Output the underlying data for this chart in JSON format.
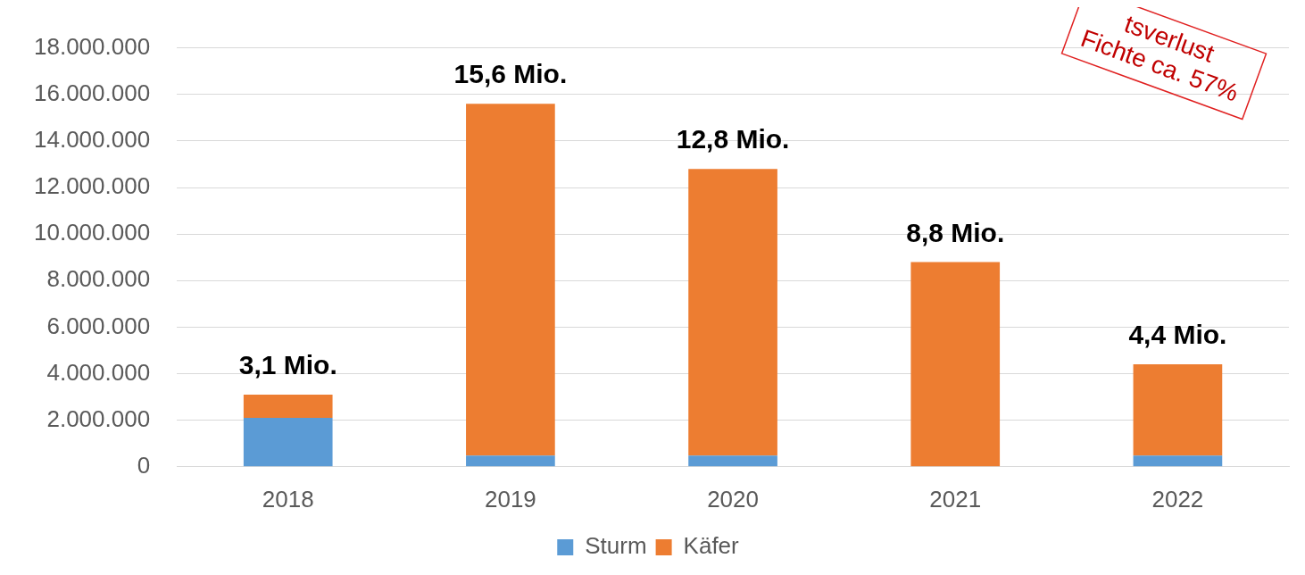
{
  "chart_data": {
    "type": "bar",
    "stacked": true,
    "categories": [
      "2018",
      "2019",
      "2020",
      "2021",
      "2022"
    ],
    "series": [
      {
        "name": "Sturm",
        "color": "#5b9bd5",
        "values": [
          2100000,
          480000,
          480000,
          0,
          480000
        ]
      },
      {
        "name": "Käfer",
        "color": "#ed7d31",
        "values": [
          1000000,
          15120000,
          12320000,
          8800000,
          3920000
        ]
      }
    ],
    "ylim": [
      0,
      18000000
    ],
    "yticks": [
      0,
      {
        "value": 2000000,
        "label": "2.000.000"
      },
      {
        "value": 4000000,
        "label": "4.000.000"
      },
      {
        "value": 6000000,
        "label": "6.000.000"
      },
      {
        "value": 8000000,
        "label": "8.000.000"
      },
      {
        "value": 10000000,
        "label": "10.000.000"
      },
      {
        "value": 12000000,
        "label": "12.000.000"
      },
      {
        "value": 14000000,
        "label": "14.000.000"
      },
      {
        "value": 16000000,
        "label": "16.000.000"
      },
      {
        "value": 18000000,
        "label": "18.000.000"
      }
    ],
    "grid": "y",
    "legend": "bottom",
    "annotations": [
      {
        "text": "3,1 Mio.",
        "x": "2018",
        "y": 3100000
      },
      {
        "text": "15,6 Mio.",
        "x": "2019",
        "y": 15600000
      },
      {
        "text": "12,8 Mio.",
        "x": "2020",
        "y": 12800000
      },
      {
        "text": "8,8 Mio.",
        "x": "2021",
        "y": 8800000
      },
      {
        "text": "4,4 Mio.",
        "x": "2022",
        "y": 4400000
      },
      "tsverlust",
      "Fichte ca. 57%"
    ]
  }
}
